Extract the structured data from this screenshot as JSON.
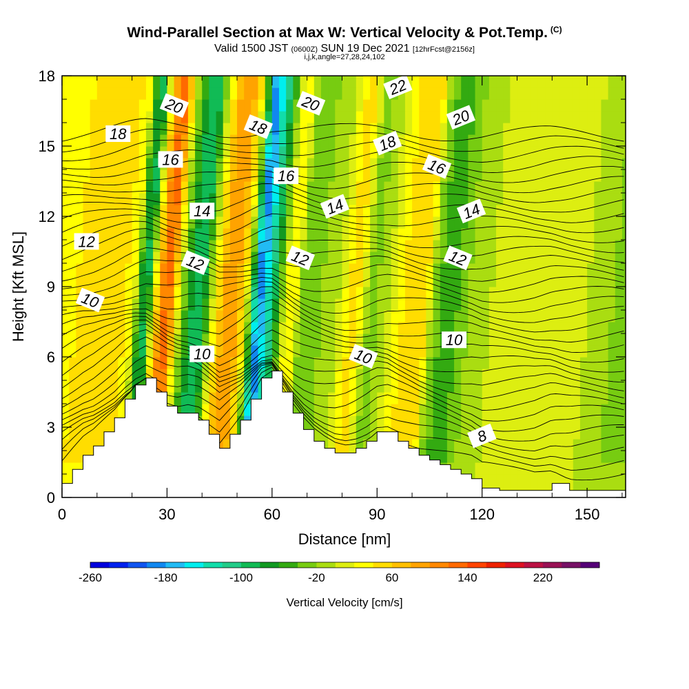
{
  "header": {
    "title": "Wind-Parallel Section at Max W: Vertical Velocity & Pot.Temp.",
    "copyright": "(C)",
    "valid_main": "Valid 1500 JST",
    "valid_z": "(0600Z)",
    "valid_date": "SUN 19 Dec 2021",
    "forecast": "[12hrFcst@2156z]",
    "index_line": "i,j,k,angle=27,28,24,102"
  },
  "chart_data": {
    "type": "heatmap",
    "title": "Wind-Parallel Section at Max W: Vertical Velocity & Pot.Temp.",
    "xlabel": "Distance [nm]",
    "ylabel": "Height [Kft MSL]",
    "xlim": [
      0,
      161
    ],
    "ylim": [
      0,
      18
    ],
    "xticks": [
      0,
      30,
      60,
      90,
      120,
      150
    ],
    "yticks": [
      0,
      3,
      6,
      9,
      12,
      15,
      18
    ],
    "colorbar": {
      "label": "Vertical Velocity [cm/s]",
      "tick_labels": [
        -260,
        -180,
        -100,
        -20,
        60,
        140,
        220
      ],
      "colors": [
        "#0000dd",
        "#0022ee",
        "#1055f0",
        "#1188f0",
        "#22bbf4",
        "#00eeee",
        "#11ddaa",
        "#22cc88",
        "#11bb55",
        "#119922",
        "#33aa11",
        "#77cc11",
        "#aadd11",
        "#ddee11",
        "#ffff00",
        "#ffdd00",
        "#ffc000",
        "#ffa300",
        "#ff8800",
        "#ff6a00",
        "#ff4400",
        "#ee2200",
        "#dd1122",
        "#bb1144",
        "#991155",
        "#771166",
        "#550077"
      ]
    },
    "vertical_velocity_columns": {
      "x": [
        0,
        4,
        8,
        12,
        16,
        20,
        22,
        24,
        26,
        28,
        30,
        32,
        34,
        36,
        38,
        40,
        42,
        44,
        46,
        48,
        50,
        52,
        54,
        56,
        58,
        60,
        62,
        64,
        66,
        68,
        70,
        74,
        78,
        82,
        84,
        86,
        88,
        92,
        96,
        100,
        104,
        106,
        108,
        110,
        112,
        114,
        116,
        120,
        125,
        130,
        140,
        150,
        161
      ],
      "w": [
        20,
        40,
        60,
        40,
        50,
        30,
        -60,
        -90,
        20,
        100,
        140,
        60,
        -20,
        -60,
        -100,
        -90,
        -20,
        40,
        80,
        90,
        80,
        40,
        -60,
        -200,
        -150,
        -100,
        -40,
        20,
        40,
        -20,
        -30,
        -20,
        -10,
        40,
        50,
        10,
        -30,
        -10,
        30,
        60,
        40,
        -20,
        -40,
        -60,
        -50,
        -30,
        -20,
        -10,
        10,
        10,
        5,
        0,
        -30
      ]
    },
    "potential_temperature": {
      "unit": "C",
      "labels": [
        {
          "text": "8",
          "x": 120,
          "z": 2.6
        },
        {
          "text": "10",
          "x": 8,
          "z": 8.4
        },
        {
          "text": "10",
          "x": 40,
          "z": 6.1
        },
        {
          "text": "10",
          "x": 86,
          "z": 6.0
        },
        {
          "text": "10",
          "x": 112,
          "z": 6.7
        },
        {
          "text": "12",
          "x": 7,
          "z": 10.9
        },
        {
          "text": "12",
          "x": 38,
          "z": 10.0
        },
        {
          "text": "12",
          "x": 68,
          "z": 10.2
        },
        {
          "text": "12",
          "x": 113,
          "z": 10.2
        },
        {
          "text": "14",
          "x": 40,
          "z": 12.2
        },
        {
          "text": "14",
          "x": 78,
          "z": 12.4
        },
        {
          "text": "14",
          "x": 117,
          "z": 12.2
        },
        {
          "text": "16",
          "x": 31,
          "z": 14.4
        },
        {
          "text": "16",
          "x": 64,
          "z": 13.7
        },
        {
          "text": "16",
          "x": 107,
          "z": 14.1
        },
        {
          "text": "18",
          "x": 16,
          "z": 15.5
        },
        {
          "text": "18",
          "x": 56,
          "z": 15.8
        },
        {
          "text": "18",
          "x": 93,
          "z": 15.1
        },
        {
          "text": "20",
          "x": 32,
          "z": 16.7
        },
        {
          "text": "20",
          "x": 71,
          "z": 16.8
        },
        {
          "text": "20",
          "x": 114,
          "z": 16.2
        },
        {
          "text": "22",
          "x": 96,
          "z": 17.5
        }
      ]
    },
    "terrain": {
      "x": [
        0,
        3,
        6,
        9,
        12,
        15,
        18,
        21,
        24,
        27,
        30,
        33,
        36,
        39,
        42,
        45,
        48,
        51,
        54,
        57,
        60,
        63,
        66,
        69,
        72,
        75,
        78,
        81,
        84,
        87,
        90,
        93,
        96,
        99,
        102,
        105,
        108,
        111,
        114,
        117,
        120,
        125,
        130,
        135,
        140,
        145,
        150,
        155,
        161
      ],
      "z": [
        0.6,
        1.2,
        1.8,
        2.2,
        2.8,
        3.4,
        4.2,
        4.8,
        5.1,
        4.5,
        3.9,
        3.6,
        3.6,
        3.3,
        2.7,
        2.1,
        2.7,
        3.3,
        4.2,
        5.1,
        5.4,
        4.5,
        3.6,
        2.9,
        2.4,
        2.1,
        1.9,
        1.9,
        2.1,
        2.4,
        2.8,
        2.8,
        2.4,
        2.1,
        1.8,
        1.6,
        1.4,
        1.2,
        1.0,
        0.8,
        0.4,
        0.3,
        0.3,
        0.3,
        0.6,
        0.3,
        0.3,
        0.3,
        0.3
      ]
    }
  }
}
